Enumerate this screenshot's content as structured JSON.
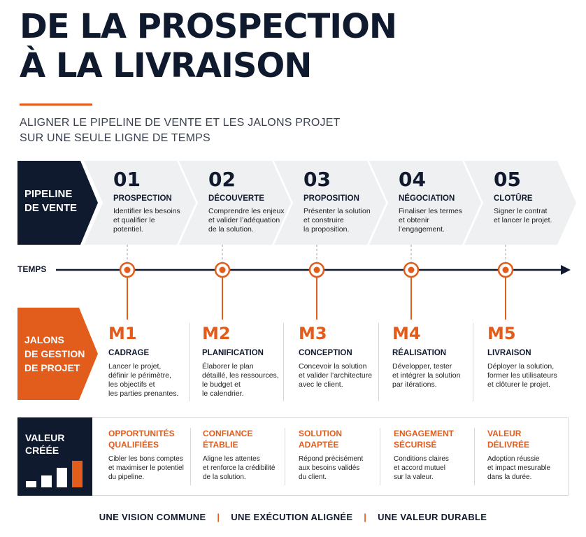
{
  "title": {
    "line1": "DE LA PROSPECTION",
    "line2": "À LA LIVRAISON"
  },
  "subtitle": {
    "line1": "ALIGNER LE PIPELINE DE VENTE ET LES JALONS PROJET",
    "line2": "SUR UNE SEULE LIGNE DE TEMPS"
  },
  "colors": {
    "navy": "#0f1a2f",
    "orange": "#e25c1c",
    "chevron_bg": "#eef0f2"
  },
  "pipeline": {
    "label_line1": "PIPELINE",
    "label_line2": "DE VENTE",
    "steps": [
      {
        "num": "01",
        "title": "PROSPECTION",
        "desc": [
          "Identifier les besoins",
          "et qualifier le",
          "potentiel."
        ]
      },
      {
        "num": "02",
        "title": "DÉCOUVERTE",
        "desc": [
          "Comprendre les enjeux",
          "et valider l’adéquation",
          "de la solution."
        ]
      },
      {
        "num": "03",
        "title": "PROPOSITION",
        "desc": [
          "Présenter la solution",
          "et construire",
          "la proposition."
        ]
      },
      {
        "num": "04",
        "title": "NÉGOCIATION",
        "desc": [
          "Finaliser les termes",
          "et obtenir",
          "l’engagement."
        ]
      },
      {
        "num": "05",
        "title": "CLOTÛRE",
        "desc": [
          "Signer le contrat",
          "et lancer le projet."
        ]
      }
    ]
  },
  "timeline": {
    "label": "TEMPS"
  },
  "milestones": {
    "label_line1": "JALONS",
    "label_line2": "DE GESTION",
    "label_line3": "DE PROJET",
    "items": [
      {
        "num": "M1",
        "title": "CADRAGE",
        "desc": [
          "Lancer le projet,",
          "définir le périmètre,",
          "les objectifs et",
          "les parties prenantes."
        ]
      },
      {
        "num": "M2",
        "title": "PLANIFICATION",
        "desc": [
          "Élaborer le plan",
          "détaillé, les ressources,",
          "le budget et",
          "le calendrier."
        ]
      },
      {
        "num": "M3",
        "title": "CONCEPTION",
        "desc": [
          "Concevoir la solution",
          "et valider l’architecture",
          "avec le client."
        ]
      },
      {
        "num": "M4",
        "title": "RÉALISATION",
        "desc": [
          "Développer, tester",
          "et intégrer la solution",
          "par itérations."
        ]
      },
      {
        "num": "M5",
        "title": "LIVRAISON",
        "desc": [
          "Déployer la solution,",
          "former les utilisateurs",
          "et clôturer le projet."
        ]
      }
    ]
  },
  "value": {
    "label_line1": "VALEUR",
    "label_line2": "CRÉÉE",
    "icon": "bar-growth-icon",
    "items": [
      {
        "title": [
          "OPPORTUNITÉS",
          "QUALIFIÉES"
        ],
        "desc": [
          "Cibler les bons comptes",
          "et maximiser le potentiel",
          "du pipeline."
        ]
      },
      {
        "title": [
          "CONFIANCE",
          "ÉTABLIE"
        ],
        "desc": [
          "Aligne les attentes",
          "et renforce la crédibilité",
          "de la solution."
        ]
      },
      {
        "title": [
          "SOLUTION",
          "ADAPTÉE"
        ],
        "desc": [
          "Répond précisément",
          "aux besoins validés",
          "du client."
        ]
      },
      {
        "title": [
          "ENGAGEMENT",
          "SÉCURISÉ"
        ],
        "desc": [
          "Conditions claires",
          "et accord mutuel",
          "sur la valeur."
        ]
      },
      {
        "title": [
          "VALEUR",
          "DÉLIVRÉE"
        ],
        "desc": [
          "Adoption réussie",
          "et impact mesurable",
          "dans la durée."
        ]
      }
    ]
  },
  "footer": {
    "part1": "UNE VISION COMMUNE",
    "part2": "UNE EXÉCUTION ALIGNÉE",
    "part3": "UNE VALEUR DURABLE",
    "separator": "|"
  }
}
